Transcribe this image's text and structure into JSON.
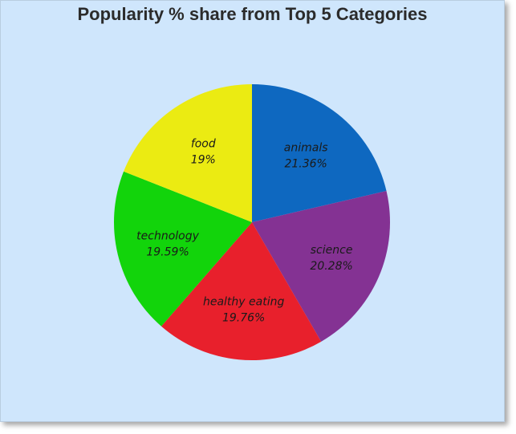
{
  "chart_data": {
    "type": "pie",
    "title": "Popularity % share from Top 5 Categories",
    "slices": [
      {
        "label": "animals",
        "value": 21.36,
        "value_label": "21.36%",
        "color": "#0e68c0"
      },
      {
        "label": "science",
        "value": 20.28,
        "value_label": "20.28%",
        "color": "#843293"
      },
      {
        "label": "healthy eating",
        "value": 19.76,
        "value_label": "19.76%",
        "color": "#e8202c"
      },
      {
        "label": "technology",
        "value": 19.59,
        "value_label": "19.59%",
        "color": "#12d40b"
      },
      {
        "label": "food",
        "value": 19,
        "value_label": "19%",
        "color": "#ebeb12"
      }
    ],
    "start_angle": "12 o'clock",
    "direction": "clockwise",
    "legend": "none"
  }
}
